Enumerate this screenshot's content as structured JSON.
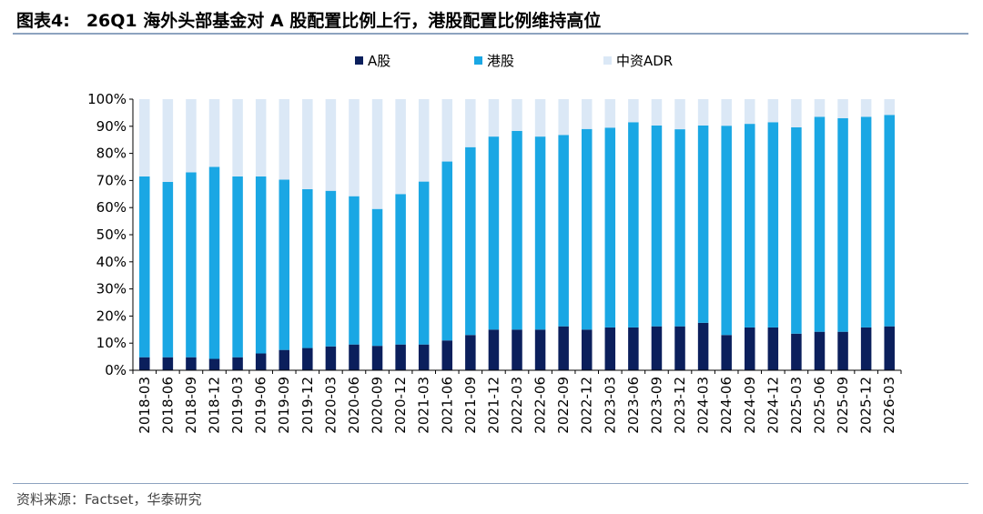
{
  "title": {
    "label": "图表4:",
    "text": "26Q1 海外头部基金对 A 股配置比例上行，港股配置比例维持高位"
  },
  "source": "资料来源：Factset，华泰研究",
  "colors": {
    "a_share": "#0b1f5c",
    "hk_share": "#1aa7e4",
    "adr": "#dbe8f6"
  },
  "chart_data": {
    "type": "bar",
    "stacked": true,
    "legend_position": "top-center",
    "grid": false,
    "ylim": [
      0,
      100
    ],
    "yticks": [
      "0%",
      "10%",
      "20%",
      "30%",
      "40%",
      "50%",
      "60%",
      "70%",
      "80%",
      "90%",
      "100%"
    ],
    "categories": [
      "2018-03",
      "2018-06",
      "2018-09",
      "2018-12",
      "2019-03",
      "2019-06",
      "2019-09",
      "2019-12",
      "2020-03",
      "2020-06",
      "2020-09",
      "2020-12",
      "2021-03",
      "2021-06",
      "2021-09",
      "2021-12",
      "2022-03",
      "2022-06",
      "2022-09",
      "2022-12",
      "2023-03",
      "2023-06",
      "2023-09",
      "2023-12",
      "2024-03",
      "2024-06",
      "2024-09",
      "2024-12",
      "2025-03",
      "2025-06",
      "2025-09",
      "2025-12",
      "2026-03"
    ],
    "series": [
      {
        "name": "A股",
        "values": [
          4.8,
          4.8,
          4.8,
          4.2,
          4.8,
          6.2,
          7.5,
          8.2,
          8.8,
          9.5,
          9.0,
          9.5,
          9.5,
          11.0,
          13.0,
          15.0,
          15.0,
          15.0,
          16.2,
          15.0,
          15.8,
          15.8,
          16.2,
          16.2,
          17.5,
          13.0,
          15.8,
          15.8,
          13.5,
          14.2,
          14.2,
          15.8,
          16.2
        ]
      },
      {
        "name": "港股",
        "values": [
          66.7,
          64.7,
          68.2,
          70.8,
          66.7,
          65.3,
          62.8,
          58.6,
          57.4,
          54.7,
          50.5,
          55.5,
          60.1,
          66.0,
          69.3,
          71.2,
          73.3,
          71.2,
          70.6,
          74.0,
          73.7,
          75.7,
          74.1,
          72.7,
          72.8,
          77.2,
          75.1,
          75.7,
          76.1,
          79.3,
          78.8,
          77.7,
          78.0
        ]
      },
      {
        "name": "中资ADR",
        "values": [
          28.5,
          30.5,
          27.0,
          25.0,
          28.5,
          28.5,
          29.7,
          33.2,
          33.8,
          35.8,
          40.5,
          35.0,
          30.4,
          23.0,
          17.7,
          13.8,
          11.7,
          13.8,
          13.2,
          11.0,
          10.5,
          8.5,
          9.7,
          11.1,
          9.7,
          9.8,
          9.1,
          8.5,
          10.4,
          6.5,
          7.0,
          6.5,
          5.8
        ]
      }
    ]
  }
}
